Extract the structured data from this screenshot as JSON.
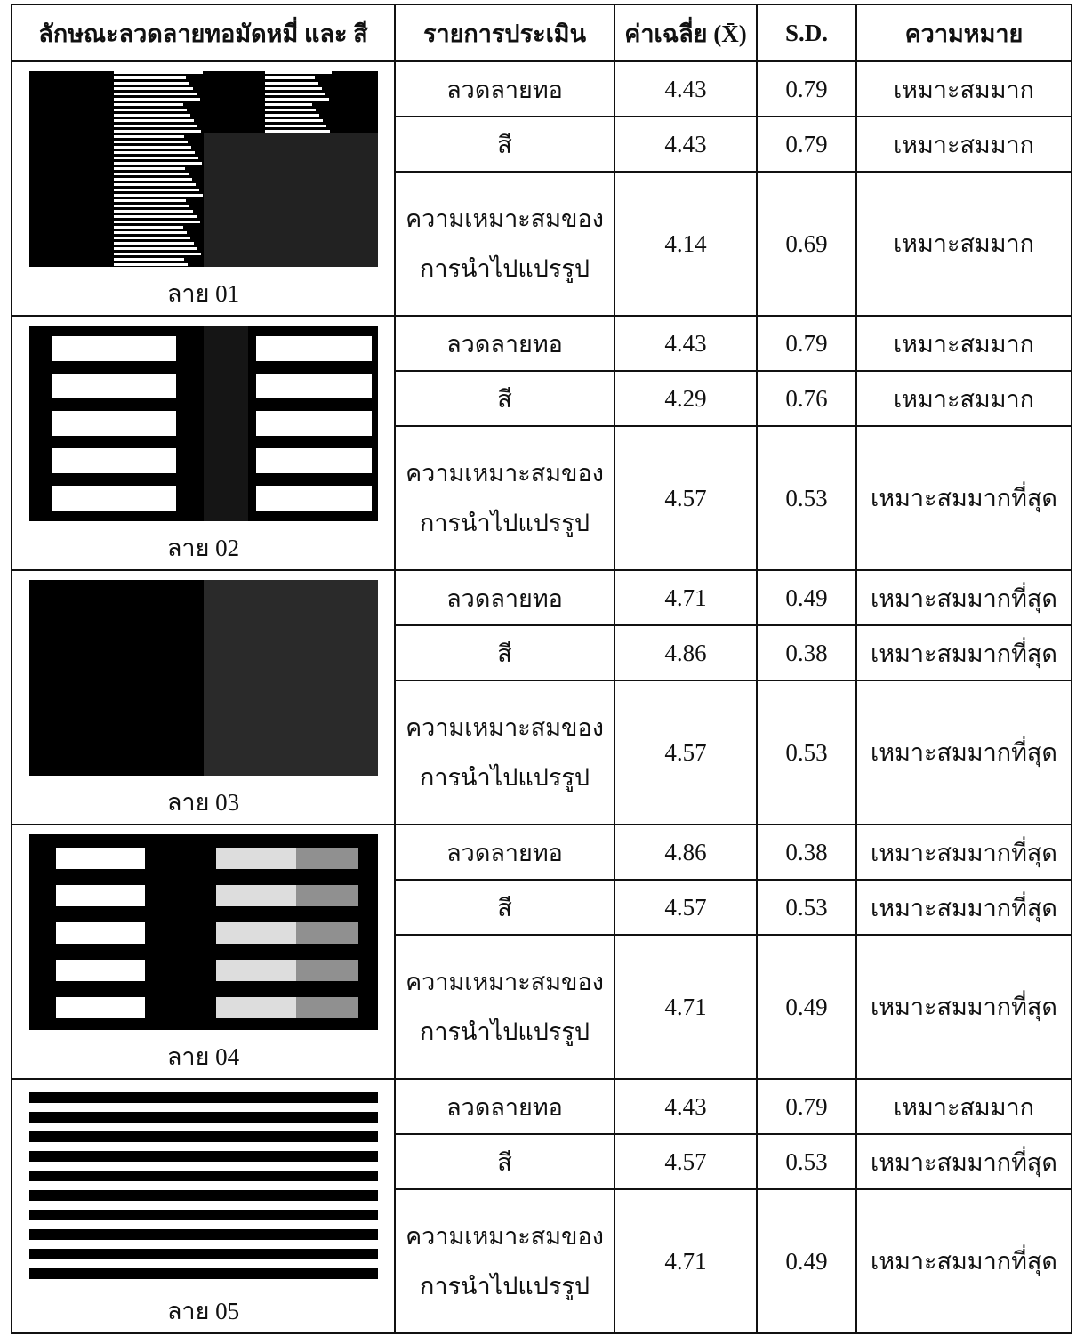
{
  "header": [
    "ลักษณะลวดลายทอมัดหมี่ และ สี",
    "รายการประเมิน",
    "ค่าเฉลี่ย (X̄)",
    "S.D.",
    "ความหมาย"
  ],
  "groups": [
    {
      "label": "ลาย 01",
      "rows": [
        [
          "ลวดลายทอ",
          4.43,
          0.79,
          "เหมาะสมมาก"
        ],
        [
          "สี",
          4.43,
          0.79,
          "เหมาะสมมาก"
        ],
        [
          "ความเหมาะสมของ\nการนำไปแปรรูป",
          4.14,
          0.69,
          "เหมาะสมมาก"
        ]
      ]
    },
    {
      "label": "ลาย 02",
      "rows": [
        [
          "ลวดลายทอ",
          4.43,
          0.79,
          "เหมาะสมมาก"
        ],
        [
          "สี",
          4.29,
          0.76,
          "เหมาะสมมาก"
        ],
        [
          "ความเหมาะสมของ\nการนำไปแปรรูป",
          4.57,
          0.53,
          "เหมาะสมมากที่สุด"
        ]
      ]
    },
    {
      "label": "ลาย 03",
      "rows": [
        [
          "ลวดลายทอ",
          4.71,
          0.49,
          "เหมาะสมมากที่สุด"
        ],
        [
          "สี",
          4.86,
          0.38,
          "เหมาะสมมากที่สุด"
        ],
        [
          "ความเหมาะสมของ\nการนำไปแปรรูป",
          4.57,
          0.53,
          "เหมาะสมมากที่สุด"
        ]
      ]
    },
    {
      "label": "ลาย 04",
      "rows": [
        [
          "ลวดลายทอ",
          4.86,
          0.38,
          "เหมาะสมมากที่สุด"
        ],
        [
          "สี",
          4.57,
          0.53,
          "เหมาะสมมากที่สุด"
        ],
        [
          "ความเหมาะสมของ\nการนำไปแปรรูป",
          4.71,
          0.49,
          "เหมาะสมมากที่สุด"
        ]
      ]
    },
    {
      "label": "ลาย 05",
      "rows": [
        [
          "ลวดลายทอ",
          4.43,
          0.79,
          "เหมาะสมมาก"
        ],
        [
          "สี",
          4.57,
          0.53,
          "เหมาะสมมากที่สุด"
        ],
        [
          "ความเหมาะสมของ\nการนำไปแปรรูป",
          4.71,
          0.49,
          "เหมาะสมมากที่สุด"
        ]
      ]
    }
  ]
}
